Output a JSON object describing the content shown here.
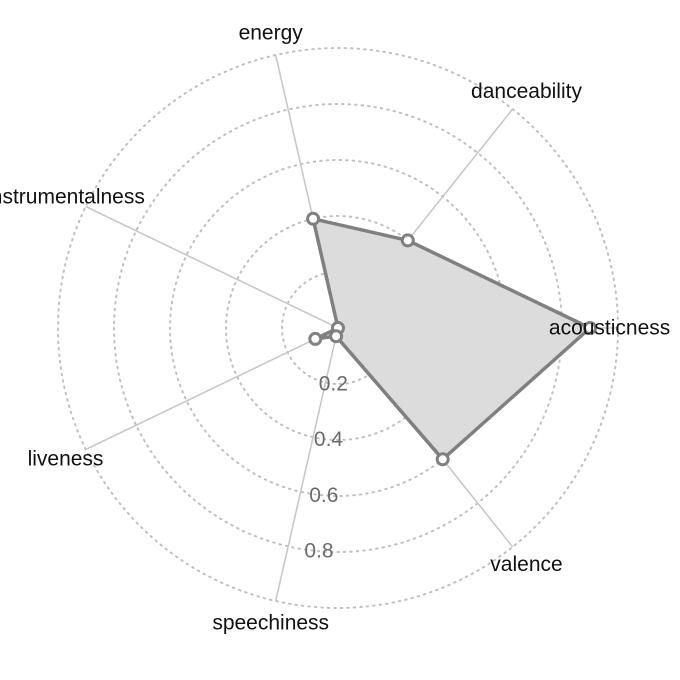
{
  "chart_data": {
    "type": "radar",
    "axes": [
      "acousticness",
      "danceability",
      "energy",
      "instrumentalness",
      "liveness",
      "speechiness",
      "valence"
    ],
    "values": [
      0.9,
      0.4,
      0.4,
      0.0,
      0.09,
      0.03,
      0.6
    ],
    "rlim": [
      0,
      1
    ],
    "rings": [
      0.2,
      0.4,
      0.6,
      0.8,
      1.0
    ],
    "tick_labels": [
      "0.2",
      "0.4",
      "0.6",
      "0.8"
    ],
    "grid": true,
    "colors": {
      "line": "#808080",
      "fill": "#dcdcdc",
      "spoke": "#c8c8c8",
      "ring": "#c0c0c0"
    }
  }
}
